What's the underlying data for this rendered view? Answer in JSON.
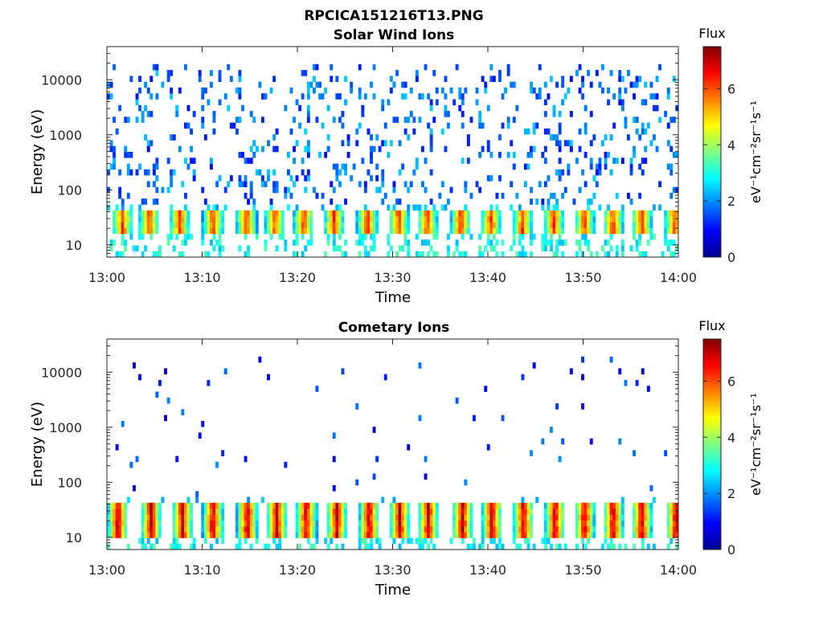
{
  "figure_title": "RPCICA151216T13.PNG",
  "colors": {
    "axis": "#262626",
    "colormap": "jet"
  },
  "chart_data": [
    {
      "type": "heatmap",
      "title": "Solar Wind Ions",
      "xlabel": "Time",
      "ylabel": "Energy (eV)",
      "x_range": [
        "13:00",
        "14:00"
      ],
      "x_ticks": [
        "13:00",
        "13:10",
        "13:20",
        "13:30",
        "13:40",
        "13:50",
        "14:00"
      ],
      "y_scale": "log",
      "y_range": [
        6,
        40000
      ],
      "y_ticks": [
        10,
        100,
        1000,
        10000
      ],
      "y_tick_labels": [
        "10",
        "100",
        "1000",
        "10000"
      ],
      "colorbar": {
        "title": "Flux",
        "label": "eV⁻¹cm⁻²sr⁻¹s⁻¹",
        "range": [
          0,
          7.5
        ],
        "ticks": [
          0,
          2,
          4,
          6
        ],
        "tick_labels": [
          "0",
          "2",
          "4",
          "6"
        ]
      },
      "bursts_minutes": [
        1.5,
        4.3,
        7.5,
        11.0,
        14.5,
        17.5,
        20.5,
        23.7,
        27.2,
        30.5,
        33.5,
        37.0,
        40.2,
        43.5,
        46.8,
        50.0,
        53.0,
        56.0,
        59.5
      ],
      "burst_energy_eV": [
        20,
        40
      ],
      "burst_peak_flux": 6.2,
      "background_energy_eV": [
        60,
        20000
      ],
      "background_flux": [
        1.0,
        2.5
      ]
    },
    {
      "type": "heatmap",
      "title": "Cometary Ions",
      "xlabel": "Time",
      "ylabel": "Energy (eV)",
      "x_range": [
        "13:00",
        "14:00"
      ],
      "x_ticks": [
        "13:00",
        "13:10",
        "13:20",
        "13:30",
        "13:40",
        "13:50",
        "14:00"
      ],
      "y_scale": "log",
      "y_range": [
        6,
        40000
      ],
      "y_ticks": [
        10,
        100,
        1000,
        10000
      ],
      "y_tick_labels": [
        "10",
        "100",
        "1000",
        "10000"
      ],
      "colorbar": {
        "title": "Flux",
        "label": "eV⁻¹cm⁻²sr⁻¹s⁻¹",
        "range": [
          0,
          7.5
        ],
        "ticks": [
          0,
          2,
          4,
          6
        ],
        "tick_labels": [
          "0",
          "2",
          "4",
          "6"
        ]
      },
      "bursts_minutes": [
        1.0,
        4.5,
        7.8,
        11.0,
        14.6,
        17.7,
        20.8,
        24.0,
        27.4,
        30.6,
        33.6,
        37.2,
        40.3,
        43.6,
        46.9,
        50.0,
        53.0,
        56.0,
        59.6
      ],
      "burst_energy_eV": [
        12,
        40
      ],
      "burst_peak_flux": 7.0,
      "background_energy_eV": [
        50,
        20000
      ],
      "background_flux": [
        0.5,
        2.0
      ]
    }
  ]
}
